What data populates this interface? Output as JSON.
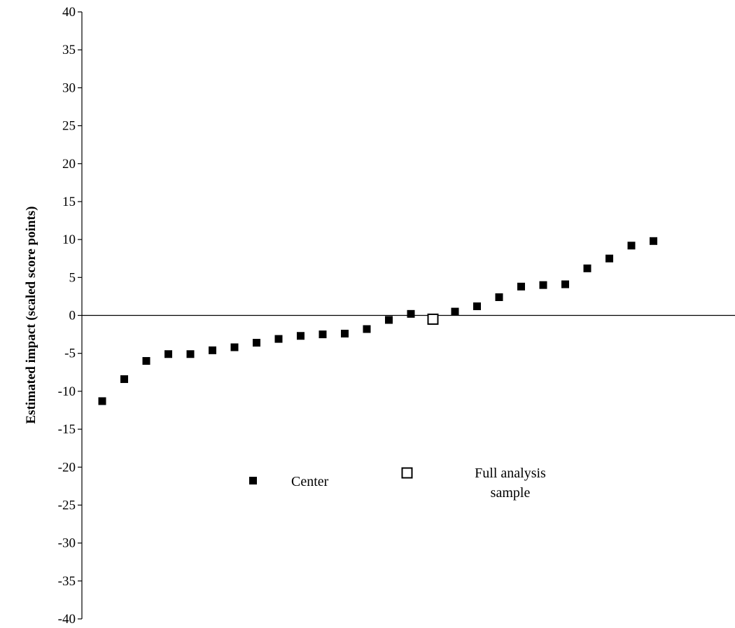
{
  "chart_data": {
    "type": "scatter",
    "title": "",
    "xlabel": "",
    "ylabel": "Estimated impact (scaled score points)",
    "ylim": [
      -40,
      40
    ],
    "yticks": [
      40,
      35,
      30,
      25,
      20,
      15,
      10,
      5,
      0,
      -5,
      -10,
      -15,
      -20,
      -25,
      -30,
      -35,
      -40
    ],
    "yticks_labels": [
      "40",
      "35",
      "30",
      "25",
      "20",
      "15",
      "10",
      "5",
      "0",
      "-5",
      "-10",
      "-15",
      "-20",
      "-25",
      "-30",
      "-35",
      "-40"
    ],
    "x_axis_visible": false,
    "zero_line": true,
    "grid": false,
    "legend_position": "center",
    "series": [
      {
        "name": "Center",
        "marker": "filled-square",
        "color": "#000000",
        "x": [
          1,
          2,
          3,
          4,
          5,
          6,
          7,
          8,
          9,
          10,
          11,
          12,
          13,
          14,
          15,
          17,
          18,
          19,
          20,
          21,
          22,
          23,
          24,
          25,
          26
        ],
        "values": [
          -11.3,
          -8.4,
          -6.0,
          -5.1,
          -5.1,
          -4.6,
          -4.2,
          -3.6,
          -3.1,
          -2.7,
          -2.5,
          -2.4,
          -1.8,
          -0.6,
          0.2,
          0.5,
          1.2,
          2.4,
          3.8,
          4.0,
          4.1,
          6.2,
          7.5,
          9.2,
          9.8
        ]
      },
      {
        "name": "Full analysis sample",
        "marker": "open-square",
        "color": "#000000",
        "x": [
          16
        ],
        "values": [
          -0.5
        ]
      }
    ],
    "legend": {
      "center_label": "Center",
      "full_label_line1": "Full analysis",
      "full_label_line2": "sample"
    }
  }
}
